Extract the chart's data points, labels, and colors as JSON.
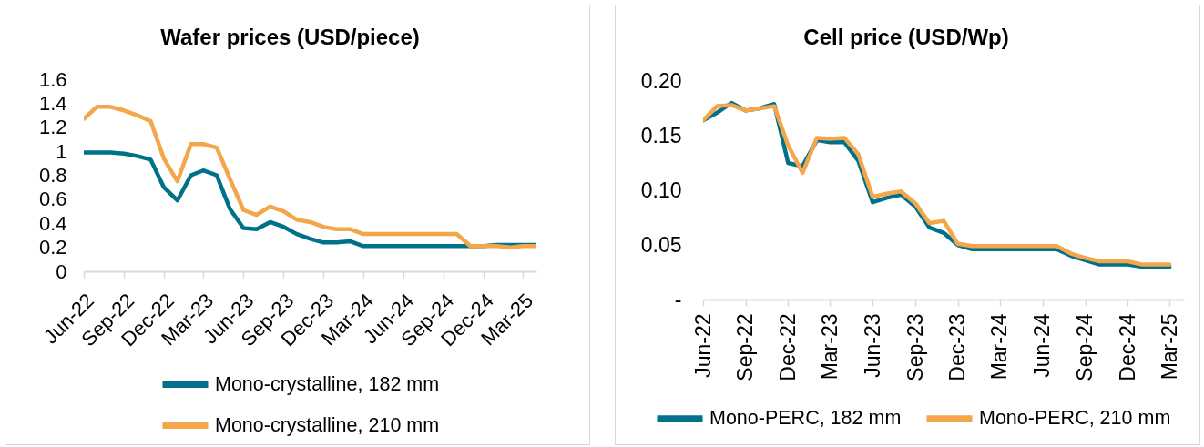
{
  "chart_data": [
    {
      "type": "line",
      "title": "Wafer prices (USD/piece)",
      "x": [
        "2022-06",
        "2022-07",
        "2022-08",
        "2022-09",
        "2022-10",
        "2022-11",
        "2022-12",
        "2023-01",
        "2023-02",
        "2023-03",
        "2023-04",
        "2023-05",
        "2023-06",
        "2023-07",
        "2023-08",
        "2023-09",
        "2023-10",
        "2023-11",
        "2023-12",
        "2024-01",
        "2024-02",
        "2024-03",
        "2024-04",
        "2024-05",
        "2024-06",
        "2024-07",
        "2024-08",
        "2024-09",
        "2024-10",
        "2024-11",
        "2024-12",
        "2025-01",
        "2025-02",
        "2025-03",
        "2025-04"
      ],
      "series": [
        {
          "name": "Mono-crystalline, 182 mm",
          "color": "#00718a",
          "values": [
            0.99,
            0.99,
            0.99,
            0.98,
            0.96,
            0.93,
            0.7,
            0.59,
            0.8,
            0.84,
            0.8,
            0.52,
            0.36,
            0.35,
            0.41,
            0.37,
            0.31,
            0.27,
            0.24,
            0.24,
            0.25,
            0.21,
            0.21,
            0.21,
            0.21,
            0.21,
            0.21,
            0.21,
            0.21,
            0.21,
            0.21,
            0.22,
            0.22,
            0.22,
            0.22
          ]
        },
        {
          "name": "Mono-crystalline, 210 mm",
          "color": "#f3a64a",
          "values": [
            1.27,
            1.37,
            1.37,
            1.34,
            1.3,
            1.25,
            0.94,
            0.75,
            1.06,
            1.06,
            1.03,
            0.77,
            0.51,
            0.47,
            0.54,
            0.5,
            0.43,
            0.41,
            0.37,
            0.35,
            0.35,
            0.31,
            0.31,
            0.31,
            0.31,
            0.31,
            0.31,
            0.31,
            0.31,
            0.21,
            0.21,
            0.21,
            0.2,
            0.21,
            0.21
          ]
        }
      ],
      "xlim": [
        "2022-06",
        "2025-04"
      ],
      "xticks": [
        {
          "value": "2022-06",
          "label": "Jun-22"
        },
        {
          "value": "2022-09",
          "label": "Sep-22"
        },
        {
          "value": "2022-12",
          "label": "Dec-22"
        },
        {
          "value": "2023-03",
          "label": "Mar-23"
        },
        {
          "value": "2023-06",
          "label": "Jun-23"
        },
        {
          "value": "2023-09",
          "label": "Sep-23"
        },
        {
          "value": "2023-12",
          "label": "Dec-23"
        },
        {
          "value": "2024-03",
          "label": "Mar-24"
        },
        {
          "value": "2024-06",
          "label": "Jun-24"
        },
        {
          "value": "2024-09",
          "label": "Sep-24"
        },
        {
          "value": "2024-12",
          "label": "Dec-24"
        },
        {
          "value": "2025-03",
          "label": "Mar-25"
        }
      ],
      "ylim": [
        0,
        1.6
      ],
      "yticks": [
        0,
        0.2,
        0.4,
        0.6,
        0.8,
        1,
        1.2,
        1.4,
        1.6
      ],
      "legend": "bottom"
    },
    {
      "type": "line",
      "title": "Cell price (USD/Wp)",
      "x": [
        "2022-06",
        "2022-07",
        "2022-08",
        "2022-09",
        "2022-10",
        "2022-11",
        "2022-12",
        "2023-01",
        "2023-02",
        "2023-03",
        "2023-04",
        "2023-05",
        "2023-06",
        "2023-07",
        "2023-08",
        "2023-09",
        "2023-10",
        "2023-11",
        "2023-12",
        "2024-01",
        "2024-02",
        "2024-03",
        "2024-04",
        "2024-05",
        "2024-06",
        "2024-07",
        "2024-08",
        "2024-09",
        "2024-10",
        "2024-11",
        "2024-12",
        "2025-01",
        "2025-02",
        "2025-03"
      ],
      "series": [
        {
          "name": "Mono-PERC, 182 mm",
          "color": "#00718a",
          "values": [
            0.164,
            0.171,
            0.18,
            0.173,
            0.175,
            0.179,
            0.125,
            0.122,
            0.146,
            0.144,
            0.144,
            0.127,
            0.089,
            0.093,
            0.096,
            0.085,
            0.066,
            0.061,
            0.05,
            0.046,
            0.046,
            0.046,
            0.046,
            0.046,
            0.046,
            0.046,
            0.04,
            0.036,
            0.032,
            0.032,
            0.032,
            0.03,
            0.03,
            0.03
          ]
        },
        {
          "name": "Mono-PERC, 210 mm",
          "color": "#f3a64a",
          "values": [
            0.164,
            0.177,
            0.178,
            0.173,
            0.175,
            0.177,
            0.141,
            0.116,
            0.148,
            0.147,
            0.148,
            0.133,
            0.094,
            0.097,
            0.099,
            0.088,
            0.07,
            0.072,
            0.051,
            0.049,
            0.049,
            0.049,
            0.049,
            0.049,
            0.049,
            0.049,
            0.042,
            0.038,
            0.035,
            0.035,
            0.035,
            0.032,
            0.032,
            0.032
          ]
        }
      ],
      "xlim": [
        "2022-06",
        "2025-04"
      ],
      "xticks": [
        {
          "value": "2022-06",
          "label": "Jun-22"
        },
        {
          "value": "2022-09",
          "label": "Sep-22"
        },
        {
          "value": "2022-12",
          "label": "Dec-22"
        },
        {
          "value": "2023-03",
          "label": "Mar-23"
        },
        {
          "value": "2023-06",
          "label": "Jun-23"
        },
        {
          "value": "2023-09",
          "label": "Sep-23"
        },
        {
          "value": "2023-12",
          "label": "Dec-23"
        },
        {
          "value": "2024-03",
          "label": "Mar-24"
        },
        {
          "value": "2024-06",
          "label": "Jun-24"
        },
        {
          "value": "2024-09",
          "label": "Sep-24"
        },
        {
          "value": "2024-12",
          "label": "Dec-24"
        },
        {
          "value": "2025-03",
          "label": "Mar-25"
        }
      ],
      "ylim": [
        0,
        0.2
      ],
      "yticks": [
        {
          "value": 0,
          "label": "-"
        },
        0.05,
        {
          "value": 0.1,
          "label": "0.10"
        },
        0.15,
        {
          "value": 0.2,
          "label": "0.20"
        }
      ],
      "legend": "bottom"
    }
  ]
}
